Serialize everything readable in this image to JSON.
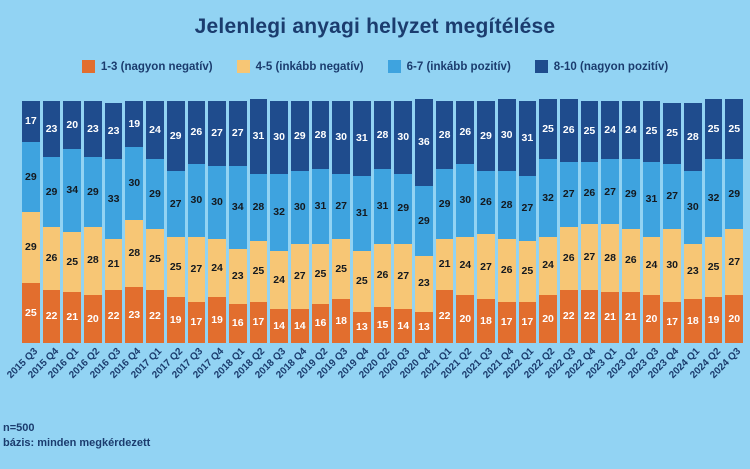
{
  "title": "Jelenlegi anyagi helyzet megítélése",
  "footer": {
    "line1": "n=500",
    "line2": "bázis: minden megkérdezett"
  },
  "colors": {
    "background": "#92d3f3",
    "text": "#1b3c6e",
    "orange": "#e26e2e",
    "yellow": "#f7c675",
    "light_blue": "#3ea3df",
    "dark_blue": "#1f4c8d"
  },
  "chart_data": {
    "type": "bar",
    "stacked": true,
    "unit": "percent",
    "title": "Jelenlegi anyagi helyzet megítélése",
    "legend_position": "top",
    "categories": [
      "2015 Q3",
      "2015 Q4",
      "2016 Q1",
      "2016 Q2",
      "2016 Q3",
      "2016 Q4",
      "2017 Q1",
      "2017 Q2",
      "2017 Q3",
      "2017 Q4",
      "2018 Q1",
      "2018 Q2",
      "2018 Q3",
      "2018 Q4",
      "2019 Q2",
      "2019 Q3",
      "2019 Q4",
      "2020 Q2",
      "2020 Q3",
      "2020 Q4",
      "2021 Q1",
      "2021 Q2",
      "2021 Q3",
      "2021 Q4",
      "2022 Q1",
      "2022 Q2",
      "2022 Q3",
      "2022 Q4",
      "2023 Q1",
      "2023 Q2",
      "2023 Q3",
      "2023 Q4",
      "2024 Q1",
      "2024 Q2",
      "2024 Q3"
    ],
    "series": [
      {
        "name": "1-3 (nagyon negatív)",
        "color": "#e26e2e",
        "text_color": "#ffffff",
        "values": [
          25,
          22,
          21,
          20,
          22,
          23,
          22,
          19,
          17,
          19,
          16,
          17,
          14,
          14,
          16,
          18,
          13,
          15,
          14,
          13,
          22,
          20,
          18,
          17,
          17,
          20,
          22,
          22,
          21,
          21,
          20,
          17,
          18,
          19,
          20
        ]
      },
      {
        "name": "4-5 (inkább negatív)",
        "color": "#f7c675",
        "text_color": "#14191f",
        "values": [
          29,
          26,
          25,
          28,
          21,
          28,
          25,
          25,
          27,
          24,
          23,
          25,
          24,
          27,
          25,
          25,
          25,
          26,
          27,
          23,
          21,
          24,
          27,
          26,
          25,
          24,
          26,
          27,
          28,
          26,
          24,
          30,
          23,
          25,
          27
        ]
      },
      {
        "name": "6-7 (inkább pozitív)",
        "color": "#3ea3df",
        "text_color": "#14191f",
        "values": [
          29,
          29,
          34,
          29,
          33,
          30,
          29,
          27,
          30,
          30,
          34,
          28,
          32,
          30,
          31,
          27,
          31,
          31,
          29,
          29,
          29,
          30,
          26,
          28,
          27,
          32,
          27,
          26,
          27,
          29,
          31,
          27,
          30,
          32,
          29
        ]
      },
      {
        "name": "8-10 (nagyon pozitív)",
        "color": "#1f4c8d",
        "text_color": "#ffffff",
        "values": [
          17,
          23,
          20,
          23,
          23,
          19,
          24,
          29,
          26,
          27,
          27,
          31,
          30,
          29,
          28,
          30,
          31,
          28,
          30,
          36,
          28,
          26,
          29,
          30,
          31,
          25,
          26,
          25,
          24,
          24,
          25,
          25,
          28,
          25,
          25
        ]
      }
    ]
  }
}
